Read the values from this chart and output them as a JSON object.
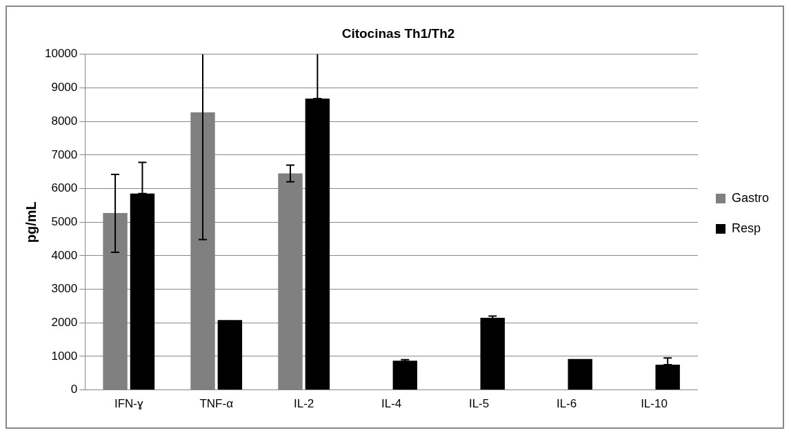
{
  "chart_data": {
    "type": "bar",
    "title": "Citocinas Th1/Th2",
    "ylabel": "pg/mL",
    "categories": [
      "IFN-ɣ",
      "TNF-α",
      "IL-2",
      "IL-4",
      "IL-5",
      "IL-6",
      "IL-10"
    ],
    "series": [
      {
        "name": "Gastro",
        "color": "#808080",
        "values": [
          5270,
          8270,
          6450,
          null,
          null,
          null,
          null
        ],
        "errors": [
          [
            4100,
            6420
          ],
          [
            4480,
            10000
          ],
          [
            6200,
            6700
          ],
          null,
          null,
          null,
          null
        ]
      },
      {
        "name": "Resp",
        "color": "#000000",
        "values": [
          5850,
          2080,
          8680,
          870,
          2150,
          920,
          750
        ],
        "errors": [
          [
            5850,
            6780
          ],
          null,
          [
            8680,
            10000
          ],
          [
            840,
            900
          ],
          [
            2100,
            2200
          ],
          null,
          [
            750,
            950
          ]
        ]
      }
    ],
    "ylim": [
      0,
      10000
    ],
    "yticks": [
      0,
      1000,
      2000,
      3000,
      4000,
      5000,
      6000,
      7000,
      8000,
      9000,
      10000
    ],
    "grid": "y",
    "legend": "right"
  }
}
